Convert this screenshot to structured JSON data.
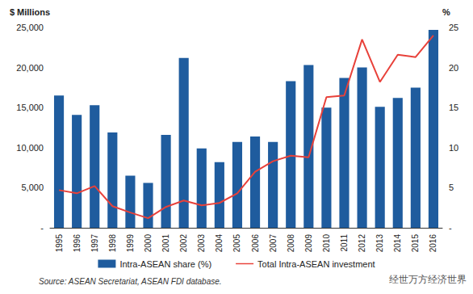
{
  "chart_data": {
    "type": "bar",
    "categories": [
      "1995",
      "1996",
      "1997",
      "1998",
      "1999",
      "2000",
      "2001",
      "2002",
      "2003",
      "2004",
      "2005",
      "2006",
      "2007",
      "2008",
      "2009",
      "2010",
      "2011",
      "2012",
      "2013",
      "2014",
      "2015",
      "2016"
    ],
    "series": [
      {
        "name": "Intra-ASEAN share (%)",
        "type": "bar",
        "color": "#1f5c9e",
        "axis": "y2",
        "values": [
          16.5,
          14.1,
          15.3,
          11.9,
          6.5,
          5.6,
          11.6,
          21.2,
          9.9,
          8.2,
          10.7,
          11.4,
          10.7,
          18.3,
          20.3,
          15.0,
          18.7,
          20.0,
          15.1,
          16.2,
          17.5,
          24.7
        ]
      },
      {
        "name": "Total Intra-ASEAN investment",
        "type": "line",
        "color": "#e8413a",
        "values": [
          4700,
          4300,
          5200,
          2700,
          1900,
          1200,
          2600,
          3400,
          2800,
          3100,
          4300,
          7000,
          8300,
          9000,
          8800,
          16300,
          16500,
          23500,
          18200,
          21600,
          21300,
          24000
        ]
      }
    ],
    "ylabel": "$ Millions",
    "y2label": "%",
    "ylim": [
      0,
      25000
    ],
    "yticks": [
      {
        "value": 0,
        "label": "-"
      },
      {
        "value": 5000,
        "label": "5,000"
      },
      {
        "value": 10000,
        "label": "10,000"
      },
      {
        "value": 15000,
        "label": "15,000"
      },
      {
        "value": 20000,
        "label": "20,000"
      },
      {
        "value": 25000,
        "label": "25,000"
      }
    ],
    "y2lim": [
      0,
      25
    ],
    "y2ticks": [
      {
        "value": 0,
        "label": "-"
      },
      5,
      10,
      15,
      20,
      25
    ],
    "grid": false,
    "legend": "bottom",
    "annotations": [
      "Source: ASEAN Secretariat, ASEAN FDI database.",
      "经世万方经济世界"
    ]
  }
}
